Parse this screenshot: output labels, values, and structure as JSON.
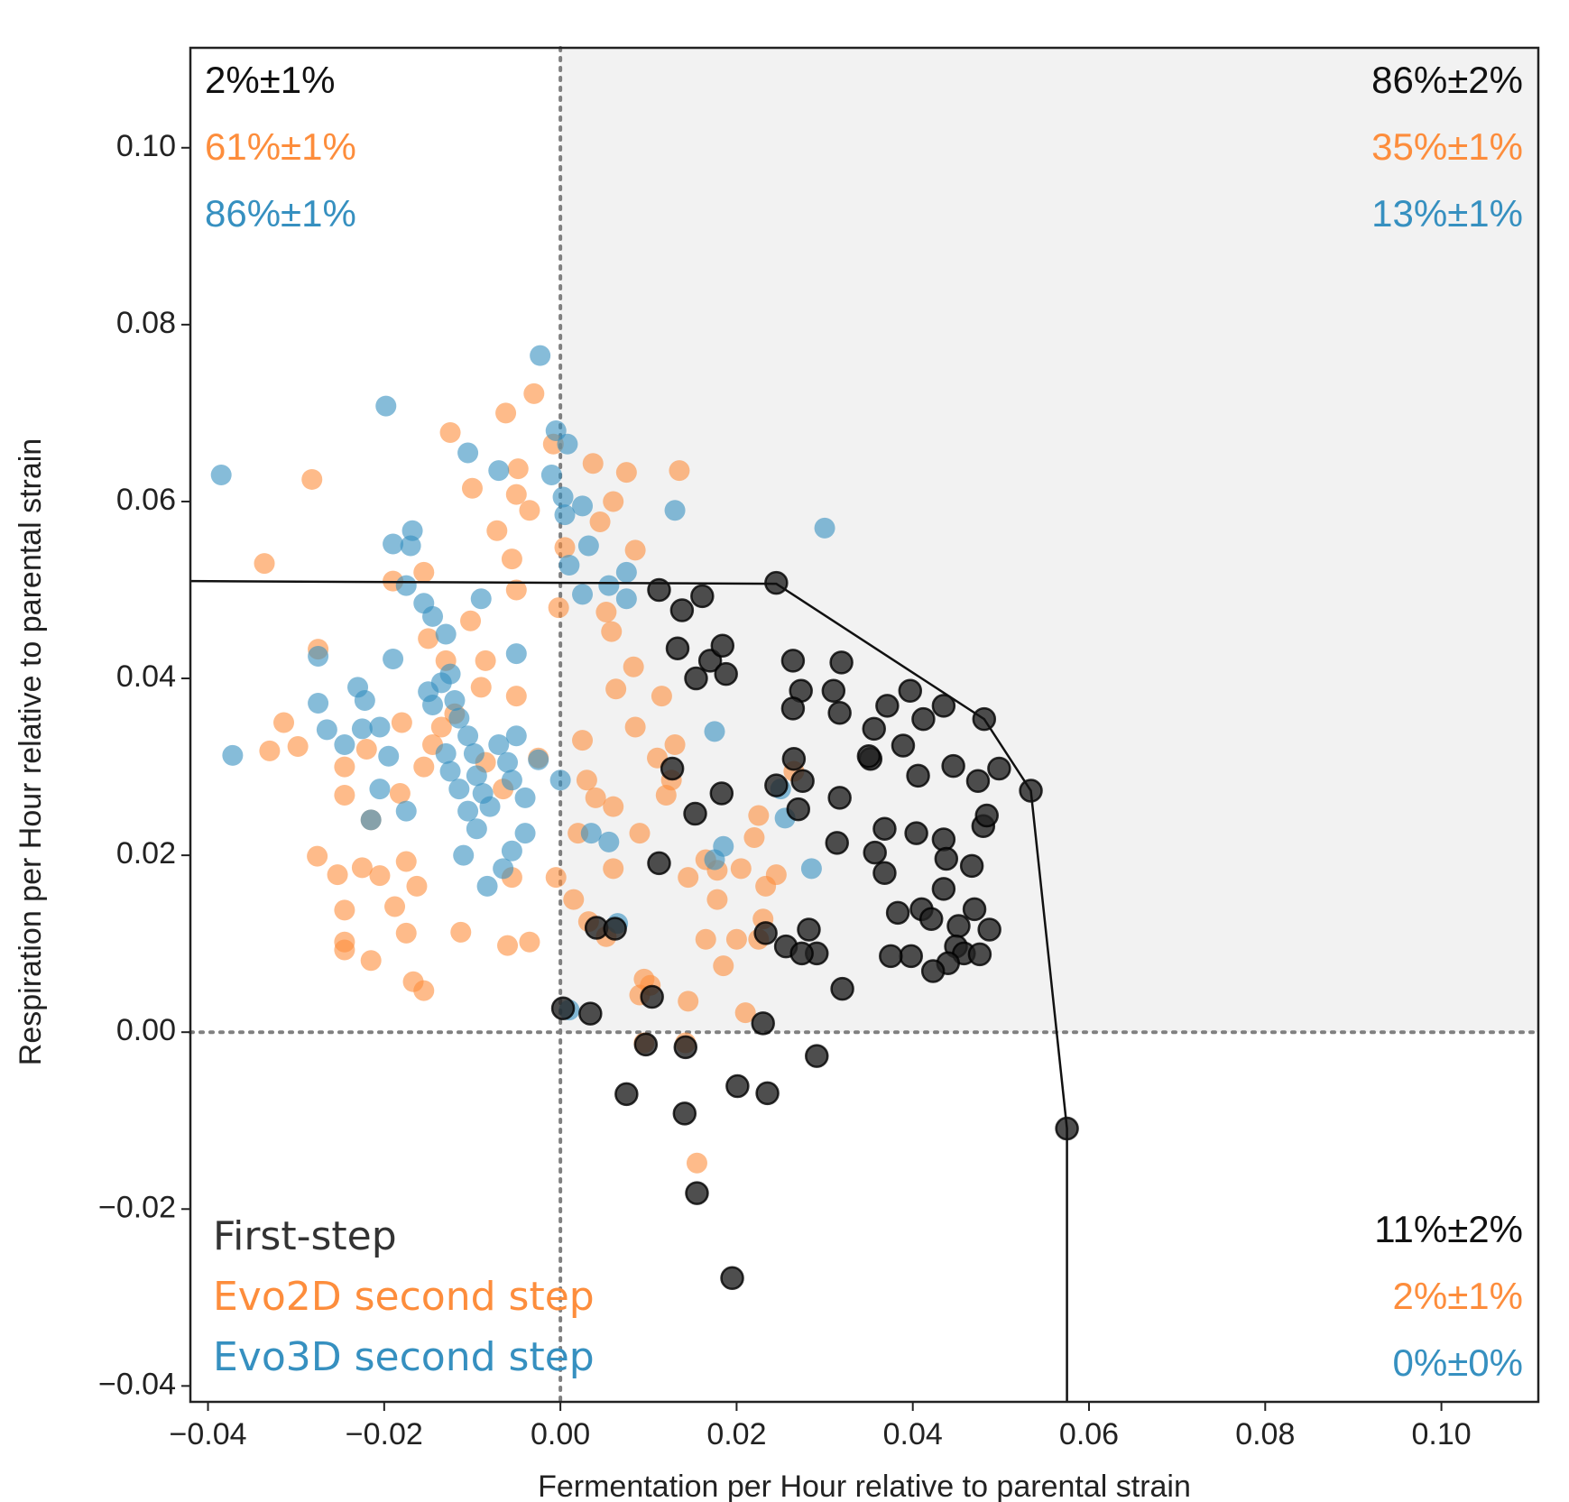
{
  "chart_data": {
    "type": "scatter",
    "xlabel": "Fermentation per Hour relative to parental strain",
    "ylabel": "Respiration per Hour relative to parental strain",
    "xlim": [
      -0.042,
      0.111
    ],
    "ylim": [
      -0.0418,
      0.1113
    ],
    "xticks": [
      {
        "value": -0.04,
        "label": "−0.04"
      },
      {
        "value": -0.02,
        "label": "−0.02"
      },
      {
        "value": 0,
        "label": "0.00"
      },
      {
        "value": 0.02,
        "label": "0.02"
      },
      {
        "value": 0.04,
        "label": "0.04"
      },
      {
        "value": 0.06,
        "label": "0.06"
      },
      {
        "value": 0.08,
        "label": "0.08"
      },
      {
        "value": 0.1,
        "label": "0.10"
      }
    ],
    "yticks": [
      {
        "value": -0.04,
        "label": "−0.04"
      },
      {
        "value": -0.02,
        "label": "−0.02"
      },
      {
        "value": 0,
        "label": "0.00"
      },
      {
        "value": 0.02,
        "label": "0.02"
      },
      {
        "value": 0.04,
        "label": "0.04"
      },
      {
        "value": 0.06,
        "label": "0.06"
      },
      {
        "value": 0.08,
        "label": "0.08"
      },
      {
        "value": 0.1,
        "label": "0.10"
      }
    ],
    "shade_color": "#f2f2f2",
    "series": [
      {
        "name": "Evo2D second step",
        "color": "#fd8d3c",
        "x": [
          -0.0336,
          -0.0282,
          -0.0125,
          -0.0062,
          -0.003,
          -0.0008,
          -0.0048,
          -0.005,
          -0.0035,
          -0.0072,
          -0.01,
          0.0037,
          0.0075,
          0.0135,
          0.0045,
          0.006,
          0.0085,
          0.0005,
          -0.0055,
          -0.0155,
          -0.019,
          -0.005,
          -0.0002,
          -0.0102,
          -0.015,
          -0.013,
          -0.0275,
          -0.0314,
          -0.033,
          -0.0298,
          -0.0245,
          -0.022,
          -0.018,
          -0.0155,
          -0.0182,
          -0.0245,
          -0.0215,
          -0.0276,
          -0.0253,
          -0.0205,
          -0.0225,
          -0.0175,
          -0.0163,
          -0.0245,
          -0.0188,
          -0.0175,
          -0.0245,
          -0.0245,
          -0.0215,
          -0.0167,
          -0.0155,
          -0.006,
          -0.0035,
          -0.0113,
          -0.0055,
          -0.0005,
          0.0015,
          0.0032,
          0.0052,
          0.006,
          0.004,
          0.006,
          0.003,
          0.002,
          0.009,
          0.0085,
          0.011,
          0.012,
          0.0126,
          0.0145,
          0.0178,
          0.02,
          0.0205,
          0.022,
          0.0185,
          0.0165,
          0.021,
          0.0225,
          0.0233,
          0.0245,
          0.0178,
          0.009,
          0.0095,
          0.0102,
          0.0145,
          0.0095,
          0.0142,
          0.0155,
          0.0083,
          0.0063,
          0.0058,
          0.0052,
          0.0025,
          -0.0025,
          -0.012,
          -0.009,
          -0.0085,
          -0.005,
          0.0115,
          -0.0085,
          -0.0065,
          -0.0135,
          -0.0145,
          0.0225,
          0.013,
          0.0265,
          0.023,
          0.0165
        ],
        "y": [
          0.053,
          0.0625,
          0.0678,
          0.07,
          0.0722,
          0.0665,
          0.0637,
          0.0608,
          0.059,
          0.0567,
          0.0615,
          0.0643,
          0.0633,
          0.0635,
          0.0577,
          0.06,
          0.0545,
          0.0548,
          0.0535,
          0.052,
          0.051,
          0.05,
          0.048,
          0.0465,
          0.0445,
          0.042,
          0.0433,
          0.035,
          0.0318,
          0.0323,
          0.03,
          0.032,
          0.035,
          0.03,
          0.027,
          0.0268,
          0.024,
          0.0199,
          0.0178,
          0.0177,
          0.0186,
          0.0193,
          0.0165,
          0.0138,
          0.0142,
          0.0112,
          0.0102,
          0.0093,
          0.0081,
          0.0057,
          0.0047,
          0.0098,
          0.0102,
          0.0113,
          0.0175,
          0.0175,
          0.015,
          0.0125,
          0.0108,
          0.0185,
          0.0265,
          0.0255,
          0.0285,
          0.0225,
          0.0225,
          0.0345,
          0.031,
          0.0268,
          0.0285,
          0.0175,
          0.0183,
          0.0105,
          0.0185,
          0.022,
          0.0075,
          0.0105,
          0.0022,
          0.0105,
          0.0165,
          0.0178,
          0.015,
          0.0042,
          0.006,
          0.0053,
          0.0035,
          -0.0012,
          -0.0012,
          -0.0148,
          0.0413,
          0.0388,
          0.0453,
          0.0475,
          0.033,
          0.031,
          0.036,
          0.039,
          0.042,
          0.038,
          0.038,
          0.0305,
          0.0275,
          0.0345,
          0.0325,
          0.0245,
          0.0325,
          0.0295,
          0.0128,
          0.0195
        ]
      },
      {
        "name": "Evo3D second step",
        "color": "#3690c0",
        "x": [
          -0.0385,
          -0.0198,
          -0.0023,
          -0.0105,
          -0.007,
          -0.0005,
          0.0008,
          -0.001,
          0.0003,
          0.0025,
          0.0005,
          0.013,
          0.03,
          -0.019,
          -0.017,
          -0.0168,
          0.0032,
          0.001,
          0.0025,
          0.0075,
          0.0055,
          0.0075,
          -0.0175,
          -0.0155,
          -0.0145,
          -0.009,
          -0.013,
          -0.0275,
          -0.019,
          -0.005,
          -0.023,
          -0.0222,
          -0.0275,
          -0.0265,
          -0.0225,
          -0.0245,
          -0.0205,
          -0.0195,
          -0.0372,
          -0.0205,
          -0.0215,
          -0.0175,
          -0.015,
          -0.0135,
          -0.012,
          -0.0115,
          -0.0105,
          -0.0098,
          -0.0095,
          -0.0088,
          -0.008,
          -0.0125,
          -0.013,
          -0.0115,
          -0.0105,
          -0.0095,
          -0.011,
          -0.0083,
          -0.0065,
          -0.0055,
          -0.004,
          -0.0055,
          -0.006,
          -0.007,
          -0.005,
          -0.0025,
          0.0,
          -0.004,
          -0.0125,
          -0.0145,
          0.0035,
          0.0055,
          0.0065,
          0.0175,
          0.0175,
          0.0185,
          0.025,
          0.0255,
          0.0285,
          0.001
        ],
        "y": [
          0.063,
          0.0708,
          0.0765,
          0.0655,
          0.0635,
          0.068,
          0.0665,
          0.063,
          0.0605,
          0.0595,
          0.0585,
          0.059,
          0.057,
          0.0552,
          0.055,
          0.0567,
          0.055,
          0.0528,
          0.0495,
          0.052,
          0.0505,
          0.049,
          0.0505,
          0.0485,
          0.047,
          0.049,
          0.045,
          0.0425,
          0.0422,
          0.0428,
          0.039,
          0.0375,
          0.0372,
          0.0342,
          0.0343,
          0.0325,
          0.0345,
          0.0312,
          0.0313,
          0.0275,
          0.024,
          0.025,
          0.0385,
          0.0395,
          0.0375,
          0.0355,
          0.0335,
          0.0315,
          0.029,
          0.027,
          0.0255,
          0.0295,
          0.0315,
          0.0275,
          0.025,
          0.023,
          0.02,
          0.0165,
          0.0185,
          0.0205,
          0.0225,
          0.0285,
          0.0305,
          0.0325,
          0.0335,
          0.0308,
          0.0285,
          0.0265,
          0.0405,
          0.037,
          0.0225,
          0.0215,
          0.0123,
          0.034,
          0.0195,
          0.021,
          0.0275,
          0.0242,
          0.0185,
          0.0025
        ]
      },
      {
        "name": "First-step",
        "color": "#222222",
        "x": [
          0.0245,
          0.0112,
          0.0161,
          0.0138,
          0.0133,
          0.017,
          0.0184,
          0.0154,
          0.0264,
          0.0273,
          0.0319,
          0.031,
          0.0264,
          0.0317,
          0.0356,
          0.0371,
          0.0397,
          0.0412,
          0.0435,
          0.0481,
          0.0389,
          0.0406,
          0.0446,
          0.0474,
          0.0498,
          0.0534,
          0.0265,
          0.0275,
          0.0317,
          0.027,
          0.0245,
          0.0183,
          0.0153,
          0.0314,
          0.0352,
          0.0368,
          0.0357,
          0.0368,
          0.0404,
          0.0435,
          0.0438,
          0.0435,
          0.0467,
          0.048,
          0.0484,
          0.0383,
          0.041,
          0.0421,
          0.0452,
          0.047,
          0.0487,
          0.0449,
          0.0458,
          0.0476,
          0.044,
          0.0423,
          0.0398,
          0.0375,
          0.0282,
          0.0256,
          0.0291,
          0.0274,
          0.0233,
          0.0041,
          0.0062,
          0.0112,
          0.032,
          0.0003,
          0.0034,
          0.0104,
          0.023,
          0.0097,
          0.0142,
          0.0291,
          0.0201,
          0.0235,
          0.0075,
          0.0141,
          0.0575,
          0.0155,
          0.0195,
          0.0127,
          0.0188,
          0.035
        ],
        "y": [
          0.0508,
          0.05,
          0.0493,
          0.0477,
          0.0434,
          0.042,
          0.0437,
          0.04,
          0.042,
          0.0386,
          0.0418,
          0.0386,
          0.0366,
          0.0361,
          0.0343,
          0.0369,
          0.0386,
          0.0354,
          0.0369,
          0.0354,
          0.0324,
          0.029,
          0.0301,
          0.0284,
          0.0298,
          0.0273,
          0.0309,
          0.0284,
          0.0265,
          0.0252,
          0.0279,
          0.027,
          0.0247,
          0.0214,
          0.0309,
          0.023,
          0.0203,
          0.018,
          0.0225,
          0.0218,
          0.0196,
          0.0162,
          0.0188,
          0.0233,
          0.0245,
          0.0135,
          0.0139,
          0.0128,
          0.012,
          0.0139,
          0.0116,
          0.0097,
          0.0089,
          0.0088,
          0.0078,
          0.0069,
          0.0086,
          0.0086,
          0.0116,
          0.0097,
          0.0089,
          0.0089,
          0.0112,
          0.0118,
          0.0117,
          0.0191,
          0.0049,
          0.0027,
          0.0021,
          0.004,
          0.001,
          -0.0014,
          -0.0017,
          -0.0027,
          -0.0061,
          -0.0069,
          -0.007,
          -0.0092,
          -0.0109,
          -0.0182,
          -0.0278,
          0.0298,
          0.0405,
          0.0312
        ]
      }
    ],
    "frontier": {
      "color": "#111111",
      "x": [
        -0.042,
        0.0245,
        0.0481,
        0.0534,
        0.0575,
        0.0575
      ],
      "y": [
        0.051,
        0.0507,
        0.0354,
        0.0273,
        -0.0109,
        -0.0418
      ]
    },
    "legend": [
      {
        "text": "First-step",
        "color": "#333333"
      },
      {
        "text": "Evo2D second step",
        "color": "#fd8d3c"
      },
      {
        "text": "Evo3D second step",
        "color": "#3690c0"
      }
    ],
    "quadrant_labels": {
      "top_left": [
        {
          "text": "2%±1%",
          "color": "#111111"
        },
        {
          "text": "61%±1%",
          "color": "#fd8d3c"
        },
        {
          "text": "86%±1%",
          "color": "#3690c0"
        }
      ],
      "top_right": [
        {
          "text": "86%±2%",
          "color": "#111111"
        },
        {
          "text": "35%±1%",
          "color": "#fd8d3c"
        },
        {
          "text": "13%±1%",
          "color": "#3690c0"
        }
      ],
      "bottom_right": [
        {
          "text": "11%±2%",
          "color": "#111111"
        },
        {
          "text": "2%±1%",
          "color": "#fd8d3c"
        },
        {
          "text": "0%±0%",
          "color": "#3690c0"
        }
      ]
    }
  }
}
